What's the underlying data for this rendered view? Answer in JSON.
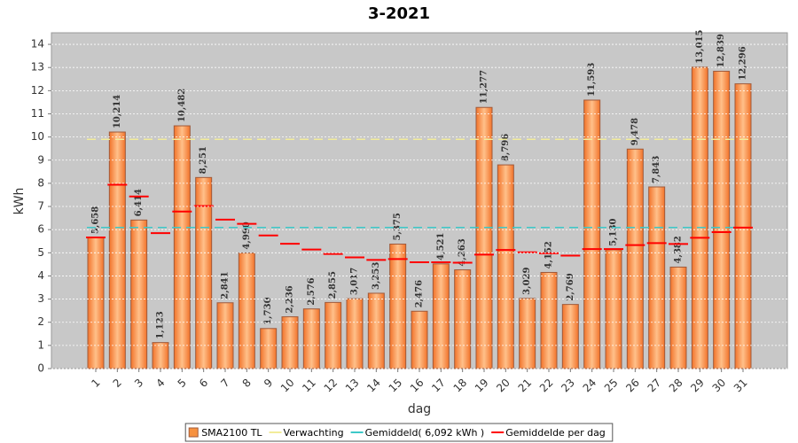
{
  "chart_data": {
    "type": "bar",
    "title": "3-2021",
    "x_label": "dag",
    "y_label": "kWh",
    "categories": [
      "1",
      "2",
      "3",
      "4",
      "5",
      "6",
      "7",
      "8",
      "9",
      "10",
      "11",
      "12",
      "13",
      "14",
      "15",
      "16",
      "17",
      "18",
      "19",
      "20",
      "21",
      "22",
      "23",
      "24",
      "25",
      "26",
      "27",
      "28",
      "29",
      "30",
      "31"
    ],
    "series": [
      {
        "name": "SMA2100 TL",
        "color": "#f7913f",
        "type": "bar",
        "values": [
          5.658,
          10.214,
          6.414,
          1.123,
          10.482,
          8.251,
          2.841,
          4.99,
          1.73,
          2.236,
          2.576,
          2.855,
          3.017,
          3.253,
          5.375,
          2.476,
          4.521,
          4.263,
          11.277,
          8.796,
          3.029,
          4.152,
          2.769,
          11.593,
          5.13,
          9.478,
          7.843,
          4.382,
          13.015,
          12.839,
          12.296
        ],
        "value_labels": [
          "5,658",
          "10,214",
          "6,414",
          "1,123",
          "10,482",
          "8,251",
          "2,841",
          "4,990",
          "1,730",
          "2,236",
          "2,576",
          "2,855",
          "3,017",
          "3,253",
          "5,375",
          "2,476",
          "4,521",
          "4,263",
          "11,277",
          "8,796",
          "3,029",
          "4,152",
          "2,769",
          "11,593",
          "5,130",
          "9,478",
          "7,843",
          "4,382",
          "13,015",
          "12,839",
          "12,296"
        ]
      },
      {
        "name": "Verwachting",
        "color": "#f2ec9a",
        "type": "hline",
        "value": 9.9
      },
      {
        "name": "Gemiddeld( 6,092 kWh )",
        "color": "#3cc8c8",
        "type": "hline",
        "value": 6.092
      },
      {
        "name": "Gemiddelde per dag",
        "color": "#ff0000",
        "type": "step",
        "values": [
          5.66,
          7.94,
          7.43,
          5.85,
          6.78,
          7.02,
          6.43,
          6.25,
          5.75,
          5.39,
          5.14,
          4.95,
          4.8,
          4.69,
          4.73,
          4.59,
          4.59,
          4.57,
          4.92,
          5.12,
          5.02,
          4.98,
          4.88,
          5.16,
          5.16,
          5.33,
          5.42,
          5.38,
          5.65,
          5.89,
          6.09
        ]
      }
    ],
    "ylim": [
      0,
      14.5
    ],
    "yticks": [
      0,
      1,
      2,
      3,
      4,
      5,
      6,
      7,
      8,
      9,
      10,
      11,
      12,
      13,
      14
    ],
    "grid": true
  }
}
